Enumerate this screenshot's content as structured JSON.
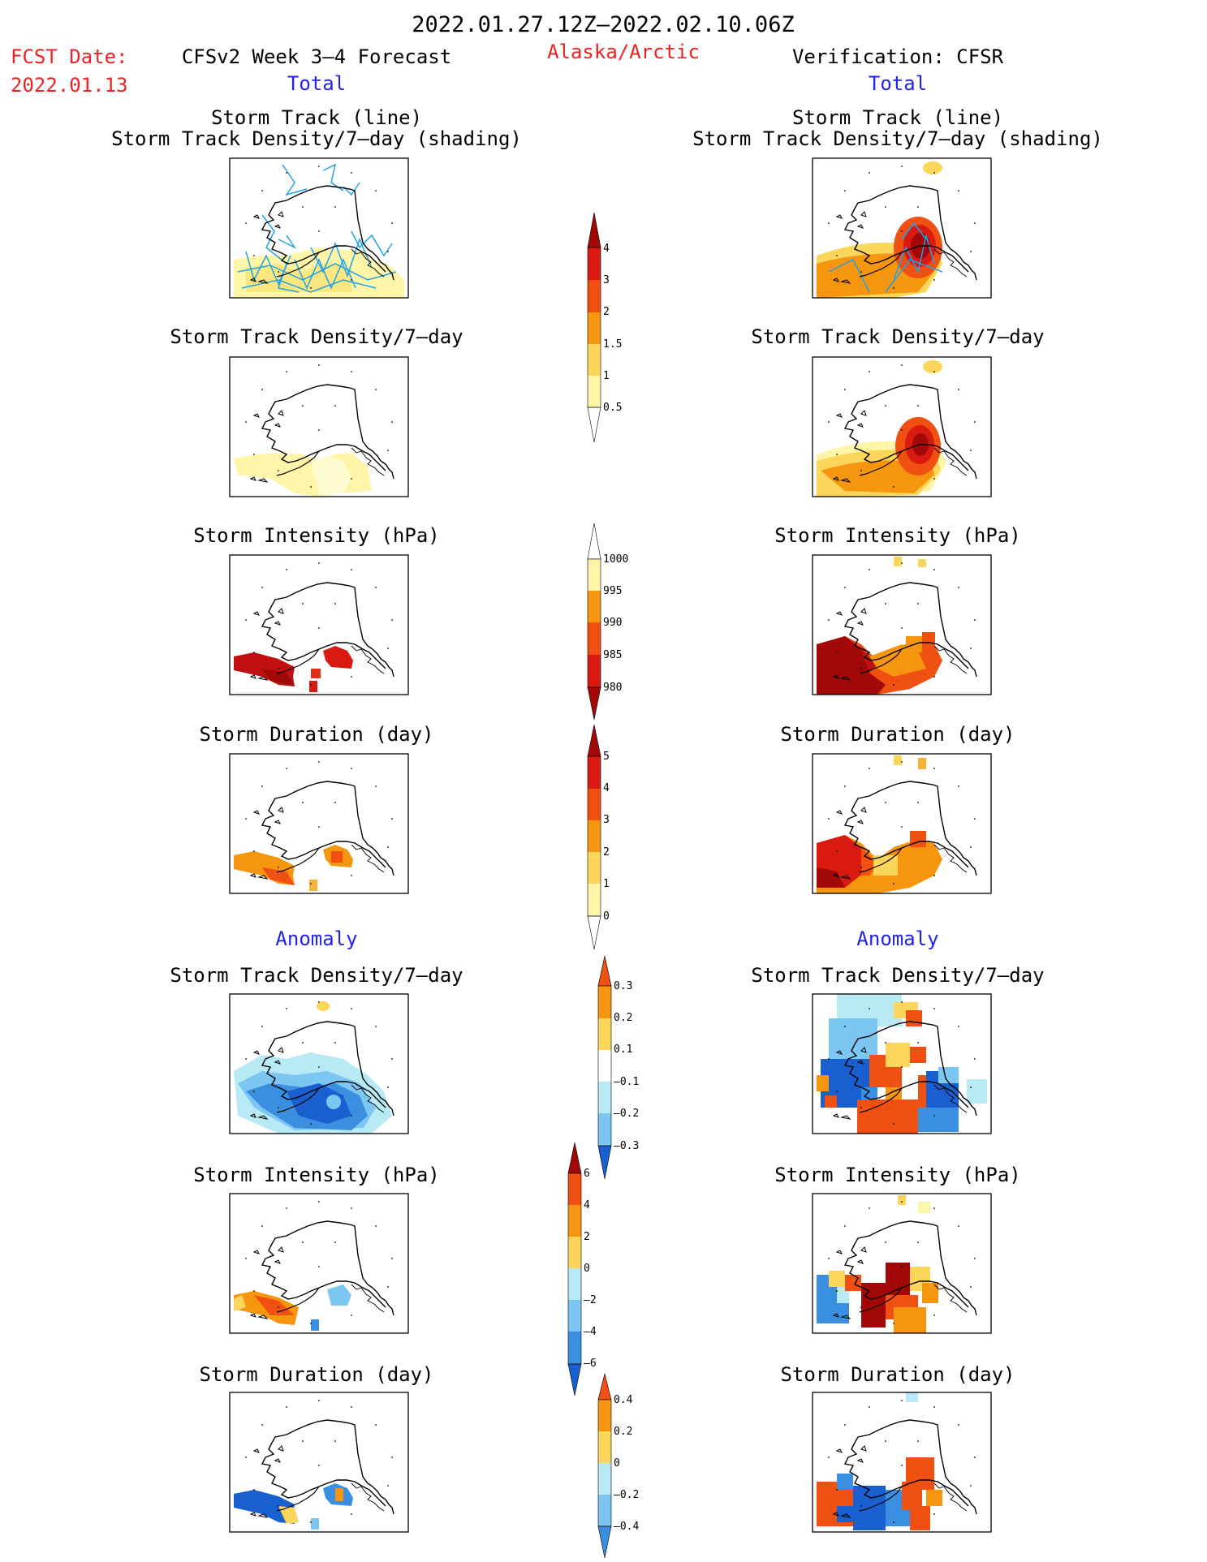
{
  "header": {
    "period": "2022.01.27.12Z–2022.02.10.06Z",
    "fcst_label": "FCST Date:",
    "fcst_date": "2022.01.13",
    "model_title": "CFSv2 Week 3–4 Forecast",
    "region": "Alaska/Arctic",
    "verification_title": "Verification: CFSR",
    "total_left": "Total",
    "total_right": "Total"
  },
  "sections": {
    "anomaly_left": "Anomaly",
    "anomaly_right": "Anomaly"
  },
  "panel_titles": {
    "track_line": "Storm Track (line)",
    "track_density_shading": "Storm Track Density/7–day (shading)",
    "track_density": "Storm Track Density/7–day",
    "intensity": "Storm Intensity (hPa)",
    "duration": "Storm Duration (day)"
  },
  "colors": {
    "title_black": "#000000",
    "fcst_red": "#ee2222",
    "section_blue": "#2222ee",
    "pale_yellow": "#fff5a8",
    "yellow": "#fbd65a",
    "light_orange": "#f7b23a",
    "orange": "#f6960f",
    "red_orange": "#f05012",
    "red": "#d81a10",
    "dark_red": "#a30808",
    "pale_blue": "#b8eaf6",
    "light_blue": "#7cc6f2",
    "blue": "#3a8fe0",
    "dark_blue": "#1a5fd0",
    "track_line": "#1fa3e8"
  },
  "colorbars": [
    {
      "id": "track-density",
      "labels": [
        "4",
        "3",
        "2",
        "1.5",
        "1",
        "0.5"
      ]
    },
    {
      "id": "intensity",
      "labels": [
        "1000",
        "995",
        "990",
        "985",
        "980"
      ]
    },
    {
      "id": "duration",
      "labels": [
        "5",
        "4",
        "3",
        "2",
        "1",
        "0"
      ]
    },
    {
      "id": "track-density-anomaly",
      "labels": [
        "0.3",
        "0.2",
        "0.1",
        "–0.1",
        "–0.2",
        "–0.3"
      ]
    },
    {
      "id": "intensity-anomaly",
      "labels": [
        "6",
        "4",
        "2",
        "0",
        "–2",
        "–4",
        "–6"
      ]
    },
    {
      "id": "duration-anomaly",
      "labels": [
        "0.4",
        "0.2",
        "0",
        "–0.2",
        "–0.4"
      ]
    }
  ]
}
